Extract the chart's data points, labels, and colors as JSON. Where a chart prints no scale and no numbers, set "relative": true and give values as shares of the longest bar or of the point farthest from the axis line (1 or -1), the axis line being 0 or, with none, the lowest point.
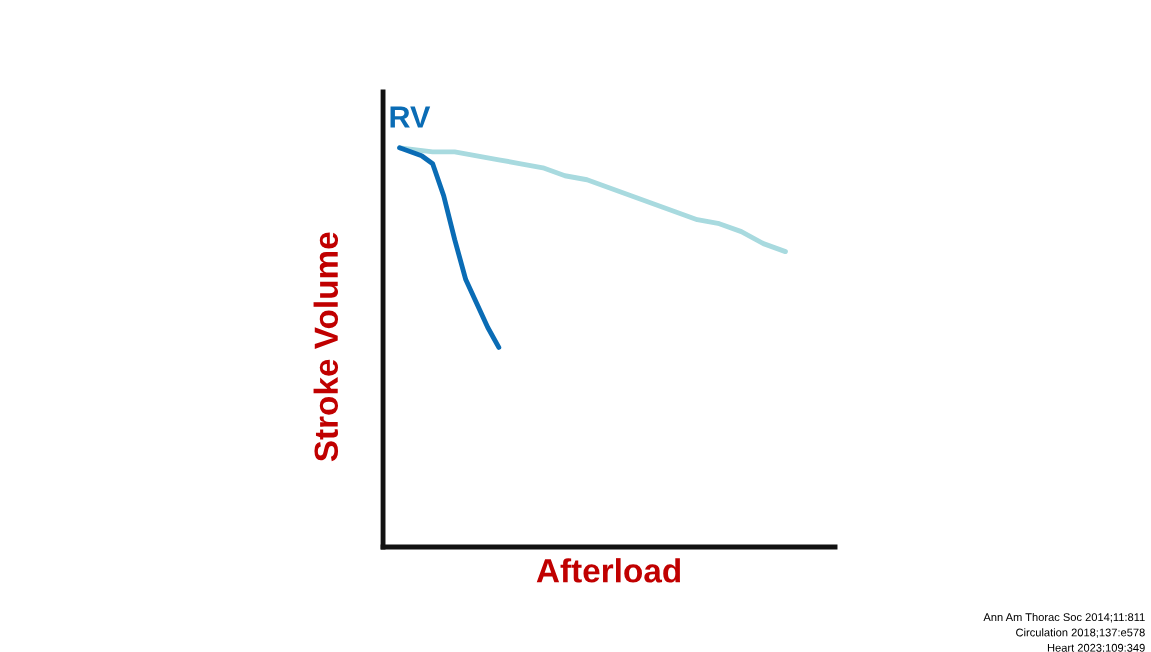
{
  "chart_data": {
    "type": "line",
    "relative": true,
    "xlabel": "Afterload",
    "ylabel": "Stroke Volume",
    "categories": [
      null,
      null,
      null,
      null,
      null,
      null,
      null,
      null,
      null,
      null,
      null,
      null,
      null,
      null,
      null,
      null,
      null,
      null,
      null,
      null,
      null,
      null,
      null,
      null,
      null,
      null,
      null,
      null,
      null,
      null,
      null,
      null,
      null,
      null,
      null,
      null,
      null,
      null,
      null,
      null,
      null
    ],
    "series": [
      {
        "color": "#a8dadf",
        "values": [
          null,
          1.0,
          null,
          null,
          0.99,
          null,
          0.99,
          null,
          0.98,
          null,
          0.97,
          null,
          0.96,
          null,
          0.95,
          null,
          0.93,
          null,
          0.92,
          null,
          0.9,
          null,
          0.88,
          null,
          0.86,
          null,
          0.84,
          null,
          0.82,
          null,
          0.81,
          null,
          0.79,
          null,
          0.76,
          null,
          0.74,
          null,
          null,
          null,
          null
        ]
      },
      {
        "name": "RV",
        "color": "#0a6cb5",
        "values": [
          null,
          1.0,
          0.99,
          0.98,
          0.96,
          0.88,
          0.77,
          0.67,
          0.61,
          0.55,
          0.5,
          null,
          null,
          null,
          null,
          null,
          null,
          null,
          null,
          null,
          null,
          null,
          null,
          null,
          null,
          null,
          null,
          null,
          null,
          null,
          null,
          null,
          null,
          null,
          null,
          null,
          null,
          null,
          null,
          null,
          null
        ]
      }
    ],
    "grid": false,
    "legend": false,
    "tick_labels": false,
    "marker": "none",
    "line_style": "solid",
    "annotations": [
      "Ann Am Thorac Soc 2014;11:811",
      "Circulation 2018;137:e578",
      "Heart 2023;109:349"
    ]
  }
}
